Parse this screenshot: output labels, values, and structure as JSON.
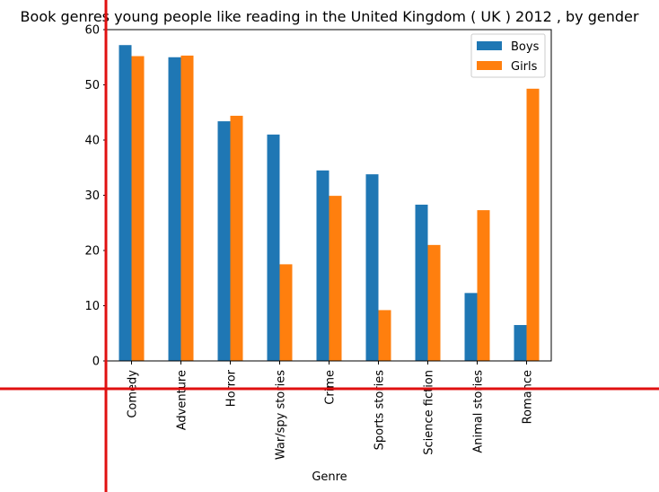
{
  "chart_data": {
    "type": "bar",
    "title": "Book genres young people like reading in the United Kingdom ( UK ) 2012 , by gender",
    "xlabel": "Genre",
    "ylabel": "",
    "ylim": [
      0,
      60
    ],
    "yticks": [
      0,
      10,
      20,
      30,
      40,
      50,
      60
    ],
    "grid": false,
    "legend_position": "top-right",
    "categories": [
      "Comedy",
      "Adventure",
      "Horror",
      "War/spy stories",
      "Crime",
      "Sports stories",
      "Science fiction",
      "Animal stories",
      "Romance"
    ],
    "series": [
      {
        "name": "Boys",
        "color": "#1f77b4",
        "values": [
          57.2,
          55.0,
          43.4,
          41.0,
          34.5,
          33.8,
          28.3,
          12.3,
          6.5
        ]
      },
      {
        "name": "Girls",
        "color": "#ff7f0e",
        "values": [
          55.2,
          55.3,
          44.4,
          17.5,
          29.9,
          9.2,
          21.0,
          27.3,
          49.3
        ]
      }
    ]
  },
  "overlay": {
    "line_color": "#e01010"
  }
}
